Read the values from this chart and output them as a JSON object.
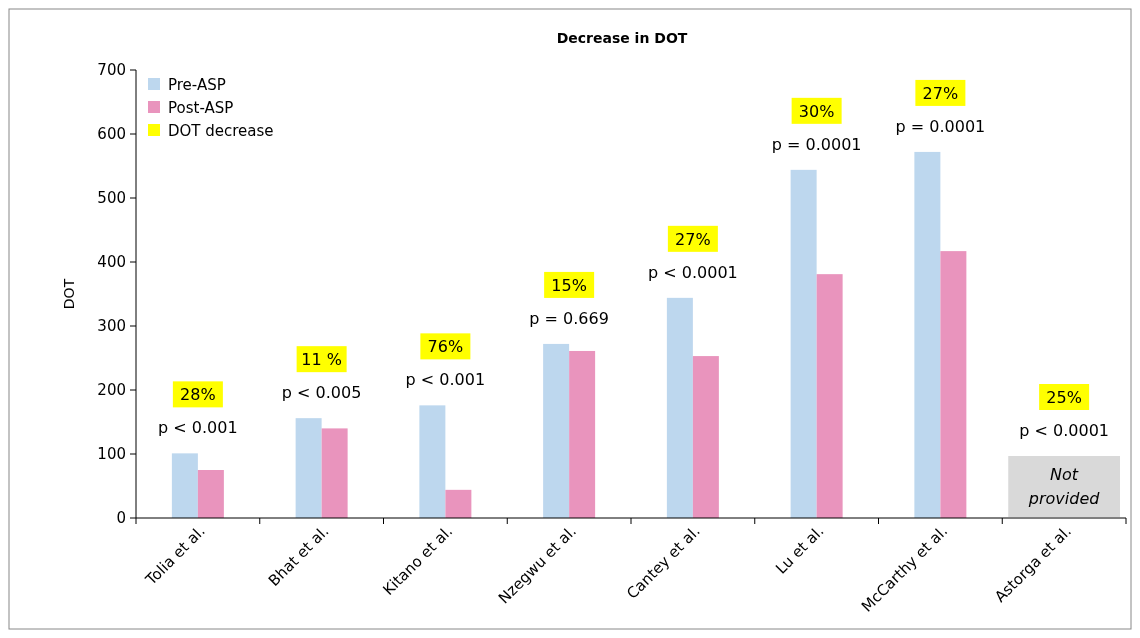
{
  "chart_data": {
    "type": "bar",
    "title": "Decrease in DOT",
    "ylabel": "DOT",
    "categories": [
      "Tolia et al.",
      "Bhat et al.",
      "Kitano et al.",
      "Nzegwu et al.",
      "Cantey et al.",
      "Lu et al.",
      "McCarthy et al.",
      "Astorga et al."
    ],
    "series": [
      {
        "name": "Pre-ASP",
        "color": "#bdd7ee",
        "values": [
          101,
          156,
          176,
          272,
          344,
          544,
          572,
          null
        ]
      },
      {
        "name": "Post-ASP",
        "color": "#e994bd",
        "values": [
          75,
          140,
          44,
          261,
          253,
          381,
          417,
          null
        ]
      },
      {
        "name": "DOT decrease",
        "color": "#ffff00",
        "values": [
          null,
          null,
          null,
          null,
          null,
          null,
          null,
          null
        ],
        "value_labels": [
          "28%",
          "11 %",
          "76%",
          "15%",
          "27%",
          "30%",
          "27%",
          "25%"
        ]
      }
    ],
    "ylim": [
      0,
      700
    ],
    "yticks": [
      0,
      100,
      200,
      300,
      400,
      500,
      600,
      700
    ],
    "grid": false,
    "legend": "top left",
    "annotations": [
      "p < 0.001",
      "p < 0.005",
      "p < 0.001",
      "p = 0.669",
      "p < 0.0001",
      "p = 0.0001",
      "p = 0.0001",
      "p < 0.0001",
      "Not provided"
    ]
  }
}
